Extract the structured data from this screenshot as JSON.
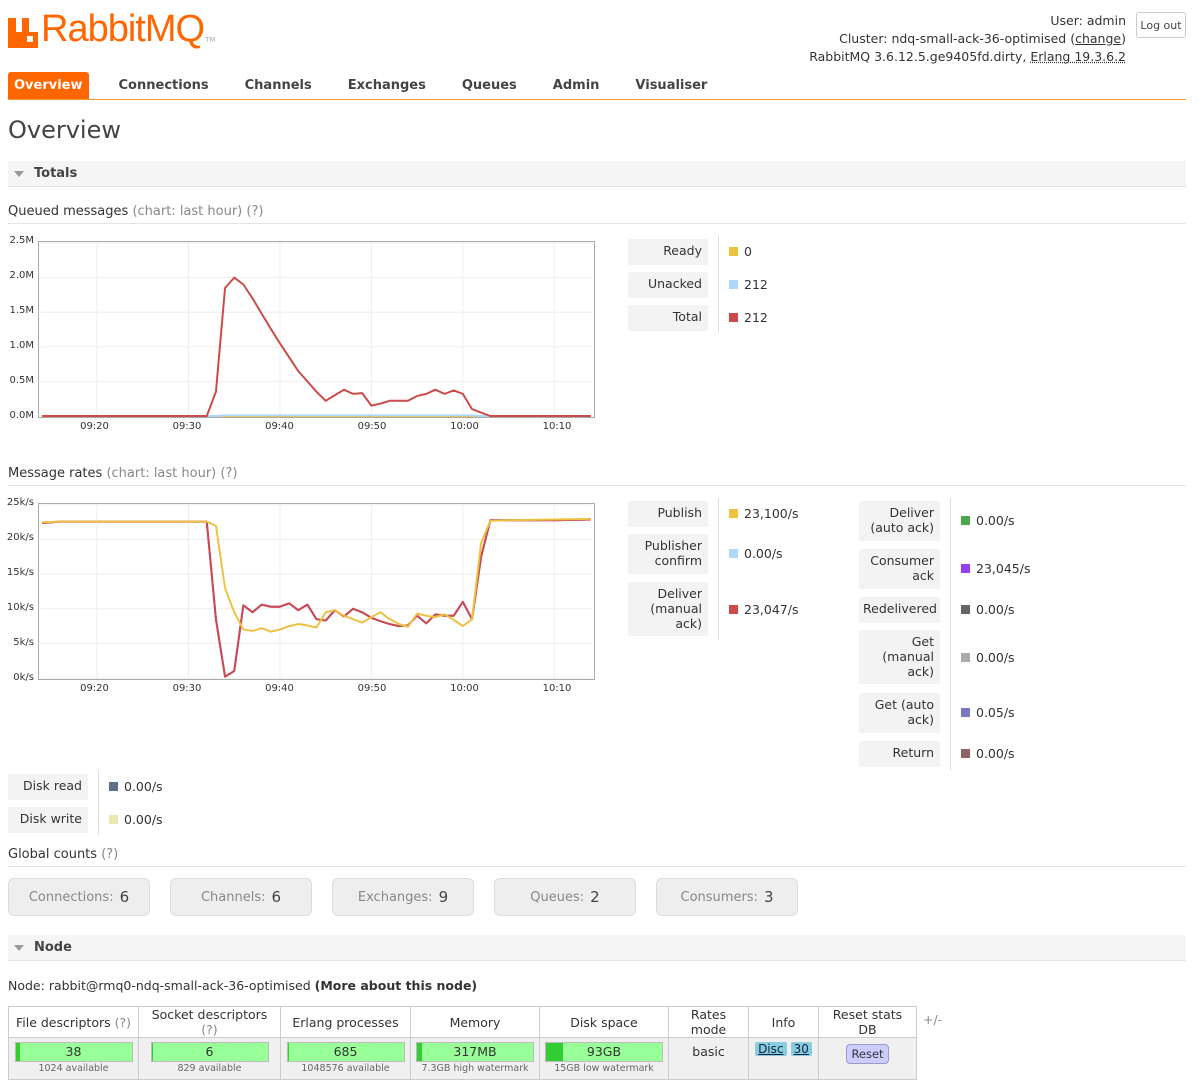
{
  "header": {
    "brand": "RabbitMQ",
    "tm": "TM",
    "user_label": "User:",
    "user": "admin",
    "cluster_label": "Cluster:",
    "cluster": "ndq-small-ack-36-optimised",
    "change": "change",
    "version": "RabbitMQ 3.6.12.5.ge9405fd.dirty,",
    "erlang": "Erlang 19.3.6.2",
    "logout": "Log out"
  },
  "tabs": [
    "Overview",
    "Connections",
    "Channels",
    "Exchanges",
    "Queues",
    "Admin",
    "Visualiser"
  ],
  "page_title": "Overview",
  "totals_title": "Totals",
  "queued": {
    "title": "Queued messages",
    "chart_hint": "(chart: last hour)",
    "help": "(?)",
    "legend": [
      {
        "label": "Ready",
        "value": "0",
        "color": "#edc240"
      },
      {
        "label": "Unacked",
        "value": "212",
        "color": "#afd8f8"
      },
      {
        "label": "Total",
        "value": "212",
        "color": "#cb4b4b"
      }
    ]
  },
  "rates": {
    "title": "Message rates",
    "chart_hint": "(chart: last hour)",
    "help": "(?)",
    "legend_left": [
      {
        "label": "Publish",
        "value": "23,100/s",
        "color": "#edc240"
      },
      {
        "label": "Publisher confirm",
        "value": "0.00/s",
        "color": "#afd8f8"
      },
      {
        "label": "Deliver (manual ack)",
        "value": "23,047/s",
        "color": "#cb4b4b"
      }
    ],
    "legend_right": [
      {
        "label": "Deliver (auto ack)",
        "value": "0.00/s",
        "color": "#4da74d"
      },
      {
        "label": "Consumer ack",
        "value": "23,045/s",
        "color": "#9440ed"
      },
      {
        "label": "Redelivered",
        "value": "0.00/s",
        "color": "#666666"
      },
      {
        "label": "Get (manual ack)",
        "value": "0.00/s",
        "color": "#aaaaaa"
      },
      {
        "label": "Get (auto ack)",
        "value": "0.05/s",
        "color": "#7c79c3"
      },
      {
        "label": "Return",
        "value": "0.00/s",
        "color": "#8d6262"
      }
    ],
    "disk": [
      {
        "label": "Disk read",
        "value": "0.00/s",
        "color": "#5d7086"
      },
      {
        "label": "Disk write",
        "value": "0.00/s",
        "color": "#e8e8b0"
      }
    ]
  },
  "global": {
    "title": "Global counts",
    "help": "(?)",
    "items": [
      {
        "label": "Connections:",
        "value": "6"
      },
      {
        "label": "Channels:",
        "value": "6"
      },
      {
        "label": "Exchanges:",
        "value": "9"
      },
      {
        "label": "Queues:",
        "value": "2"
      },
      {
        "label": "Consumers:",
        "value": "3"
      }
    ]
  },
  "node": {
    "title": "Node",
    "label": "Node:",
    "name": "rabbit@rmq0-ndq-small-ack-36-optimised",
    "more": "(More about this node)",
    "headers": [
      "File descriptors",
      "Socket descriptors",
      "Erlang processes",
      "Memory",
      "Disk space",
      "Rates mode",
      "Info",
      "Reset stats DB"
    ],
    "help": "(?)",
    "plusminus": "+/-",
    "fd": {
      "value": "38",
      "sub": "1024 available",
      "fill": 0.04
    },
    "sd": {
      "value": "6",
      "sub": "829 available",
      "fill": 0.01
    },
    "ep": {
      "value": "685",
      "sub": "1048576 available",
      "fill": 0.01
    },
    "mem": {
      "value": "317MB",
      "sub": "7.3GB high watermark",
      "fill": 0.04
    },
    "disk": {
      "value": "93GB",
      "sub": "15GB low watermark",
      "fill": 0.15
    },
    "rates_mode": "basic",
    "info_disc": "Disc",
    "info_num": "30",
    "reset": "Reset"
  },
  "chart_data": [
    {
      "type": "line",
      "title": "Queued messages",
      "x": [
        "09:14",
        "09:16",
        "09:18",
        "09:20",
        "09:22",
        "09:24",
        "09:26",
        "09:28",
        "09:30",
        "09:31",
        "09:32",
        "09:33",
        "09:34",
        "09:35",
        "09:36",
        "09:37",
        "09:38",
        "09:39",
        "09:40",
        "09:41",
        "09:42",
        "09:43",
        "09:44",
        "09:45",
        "09:46",
        "09:47",
        "09:48",
        "09:49",
        "09:50",
        "09:51",
        "09:52",
        "09:53",
        "09:54",
        "09:55",
        "09:56",
        "09:57",
        "09:58",
        "09:59",
        "10:00",
        "10:01",
        "10:02",
        "10:03",
        "10:05",
        "10:10",
        "10:14"
      ],
      "series": [
        {
          "name": "Total",
          "values": [
            0,
            0,
            0,
            0,
            0,
            0,
            0,
            0,
            0,
            0,
            0,
            0.35,
            1.85,
            2.0,
            1.9,
            1.7,
            1.48,
            1.26,
            1.05,
            0.85,
            0.65,
            0.5,
            0.35,
            0.22,
            0.3,
            0.38,
            0.32,
            0.33,
            0.15,
            0.18,
            0.22,
            0.22,
            0.22,
            0.29,
            0.32,
            0.38,
            0.32,
            0.37,
            0.32,
            0.1,
            0.05,
            0,
            0,
            0,
            0
          ]
        },
        {
          "name": "Unacked",
          "values": [
            0,
            0,
            0,
            0,
            0,
            0,
            0,
            0,
            0,
            0,
            0,
            0,
            0.01,
            0.01,
            0.01,
            0.01,
            0.01,
            0.01,
            0.01,
            0.01,
            0.01,
            0.01,
            0.01,
            0.01,
            0.01,
            0.01,
            0.01,
            0.01,
            0.01,
            0.01,
            0.01,
            0.01,
            0.01,
            0.01,
            0.01,
            0.01,
            0.01,
            0.01,
            0.01,
            0.01,
            0,
            0,
            0,
            0,
            0
          ]
        },
        {
          "name": "Ready",
          "values": [
            0,
            0,
            0,
            0,
            0,
            0,
            0,
            0,
            0,
            0,
            0,
            0,
            0,
            0,
            0,
            0,
            0,
            0,
            0,
            0,
            0,
            0,
            0,
            0,
            0,
            0,
            0,
            0,
            0,
            0,
            0,
            0,
            0,
            0,
            0,
            0,
            0,
            0,
            0,
            0,
            0,
            0,
            0,
            0,
            0
          ]
        }
      ],
      "yticks": [
        "0.0M",
        "0.5M",
        "1.0M",
        "1.5M",
        "2.0M",
        "2.5M"
      ],
      "ylim": [
        0,
        2.5
      ],
      "xticks": [
        "09:20",
        "09:30",
        "09:40",
        "09:50",
        "10:00",
        "10:10"
      ]
    },
    {
      "type": "line",
      "title": "Message rates",
      "x": [
        "09:14",
        "09:16",
        "09:18",
        "09:20",
        "09:22",
        "09:24",
        "09:26",
        "09:28",
        "09:30",
        "09:31",
        "09:32",
        "09:33",
        "09:34",
        "09:35",
        "09:36",
        "09:37",
        "09:38",
        "09:39",
        "09:40",
        "09:41",
        "09:42",
        "09:43",
        "09:44",
        "09:45",
        "09:46",
        "09:47",
        "09:48",
        "09:49",
        "09:50",
        "09:51",
        "09:52",
        "09:53",
        "09:54",
        "09:55",
        "09:56",
        "09:57",
        "09:58",
        "09:59",
        "10:00",
        "10:01",
        "10:02",
        "10:03",
        "10:05",
        "10:10",
        "10:14"
      ],
      "series": [
        {
          "name": "Publish",
          "values": [
            22.5,
            22.6,
            22.6,
            22.6,
            22.6,
            22.6,
            22.6,
            22.6,
            22.6,
            22.6,
            22.6,
            22.0,
            13.0,
            9.5,
            7.0,
            6.8,
            7.2,
            6.7,
            7.0,
            7.5,
            7.8,
            7.6,
            7.3,
            9.5,
            9.8,
            9.0,
            8.5,
            8.0,
            8.8,
            9.5,
            8.5,
            7.8,
            7.4,
            9.3,
            9.0,
            8.8,
            9.2,
            8.4,
            7.5,
            8.5,
            19.5,
            22.7,
            22.8,
            22.9,
            23.0
          ]
        },
        {
          "name": "Deliver (manual ack)",
          "values": [
            22.4,
            22.6,
            22.6,
            22.6,
            22.6,
            22.6,
            22.6,
            22.6,
            22.6,
            22.6,
            22.6,
            8.5,
            0.2,
            1.0,
            10.5,
            9.5,
            10.6,
            10.3,
            10.3,
            10.8,
            9.8,
            10.6,
            8.5,
            8.3,
            9.8,
            8.9,
            10.0,
            9.5,
            8.7,
            8.2,
            7.8,
            7.5,
            7.6,
            9.0,
            7.9,
            9.2,
            9.0,
            9.0,
            11.0,
            8.5,
            17.5,
            22.8,
            22.8,
            22.8,
            22.9
          ]
        },
        {
          "name": "Consumer ack",
          "values": [
            22.4,
            22.6,
            22.6,
            22.6,
            22.6,
            22.6,
            22.6,
            22.6,
            22.6,
            22.6,
            22.6,
            8.5,
            0.2,
            1.0,
            10.5,
            9.5,
            10.6,
            10.3,
            10.3,
            10.8,
            9.8,
            10.6,
            8.5,
            8.3,
            9.8,
            8.9,
            10.0,
            9.5,
            8.7,
            8.2,
            7.8,
            7.5,
            7.6,
            9.0,
            7.9,
            9.2,
            9.0,
            9.0,
            11.0,
            8.5,
            17.5,
            22.8,
            22.8,
            22.8,
            22.9
          ]
        }
      ],
      "yticks": [
        "0k/s",
        "5k/s",
        "10k/s",
        "15k/s",
        "20k/s",
        "25k/s"
      ],
      "ylim": [
        0,
        25
      ],
      "xticks": [
        "09:20",
        "09:30",
        "09:40",
        "09:50",
        "10:00",
        "10:10"
      ]
    }
  ]
}
